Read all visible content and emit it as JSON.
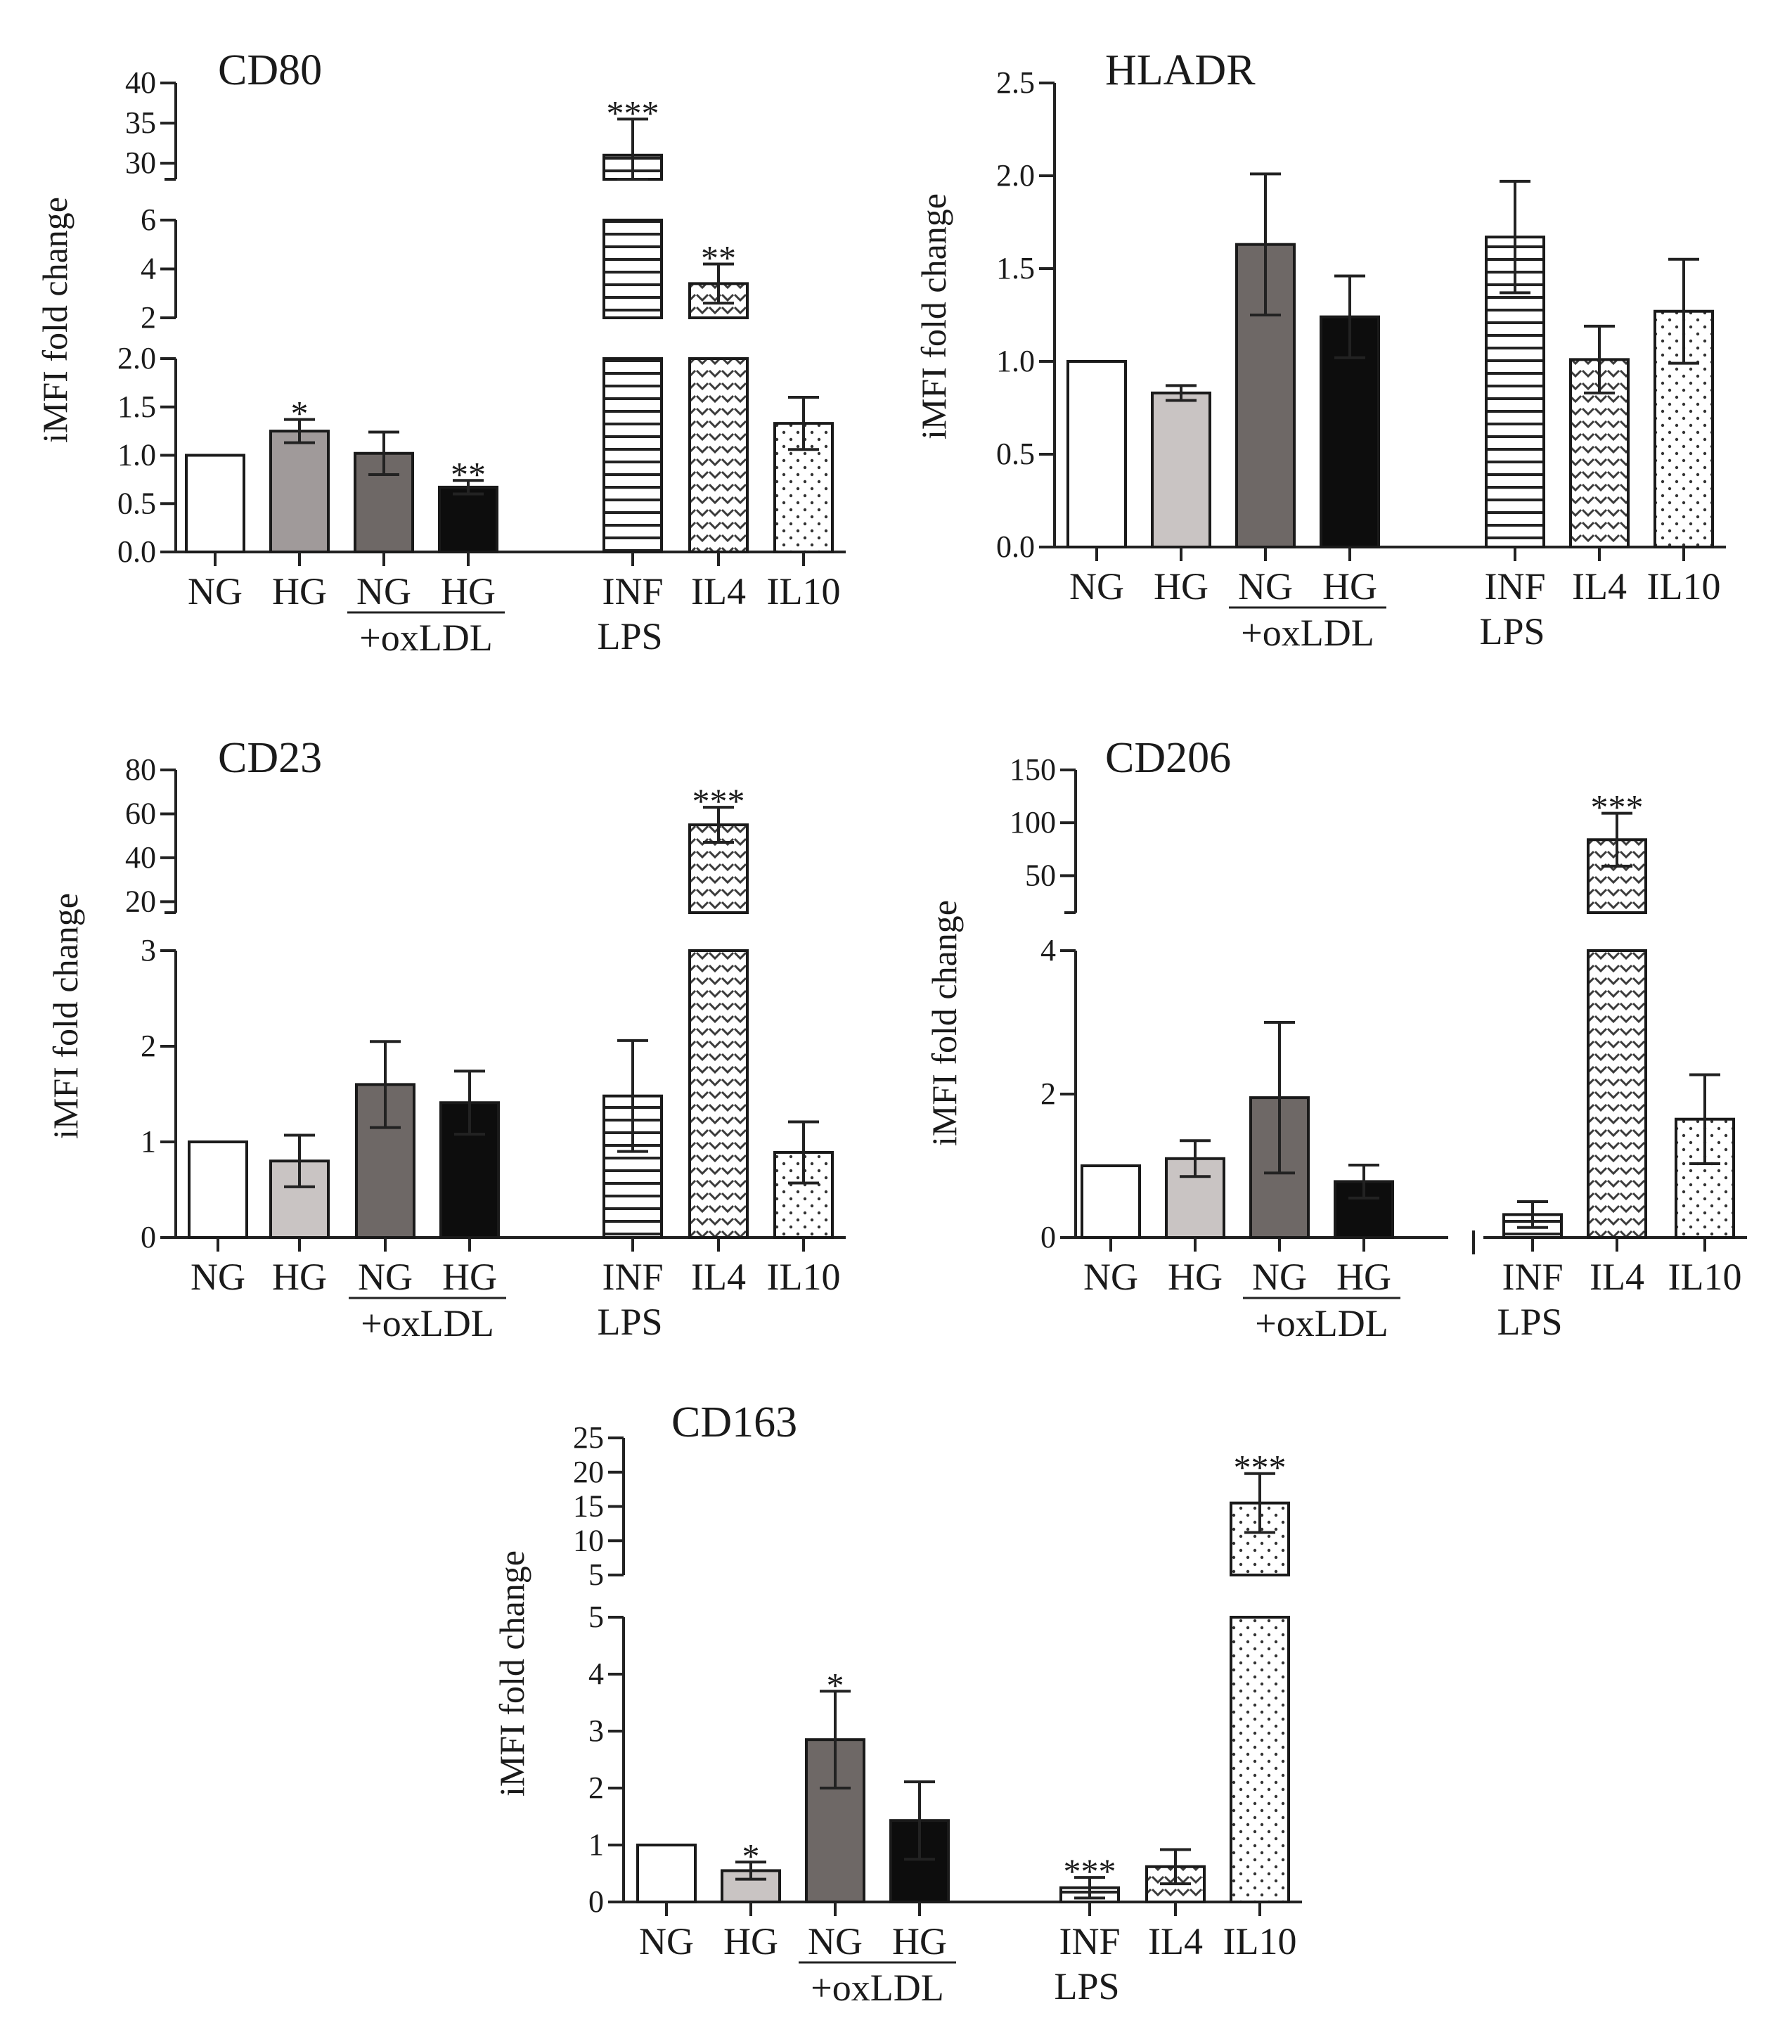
{
  "figure": {
    "panels": [
      "CD80",
      "HLADR",
      "CD23",
      "CD206",
      "CD163"
    ]
  },
  "patterns": {
    "NG": "white",
    "HG": "light-gray",
    "NG+oxLDL": "dark-gray",
    "HG+oxLDL": "black",
    "INF LPS": "horizontal-lines",
    "IL4": "chevron-pattern",
    "IL10": "dots"
  },
  "colors": {
    "light_gray": "#c9c4c3",
    "light_gray_cd80": "#a09a9a",
    "dark_gray": "#6e6866",
    "black": "#0d0d0d",
    "axis": "#222222"
  },
  "chart_data": [
    {
      "type": "bar",
      "title": "CD80",
      "ylabel": "iMFI fold change",
      "axis_break": true,
      "segments": [
        {
          "range": [
            0,
            2
          ],
          "ticks": [
            "0.0",
            "0.5",
            "1.0",
            "1.5",
            "2.0"
          ]
        },
        {
          "range": [
            2,
            6
          ],
          "ticks": [
            "2",
            "4",
            "6"
          ]
        },
        {
          "range": [
            28,
            40
          ],
          "ticks": [
            "30",
            "35",
            "40"
          ]
        }
      ],
      "categories": [
        "NG",
        "HG",
        "NG+oxLDL",
        "HG+oxLDL",
        "INF LPS",
        "IL4",
        "IL10"
      ],
      "values": [
        1.0,
        1.25,
        1.02,
        0.67,
        31.0,
        3.4,
        1.33
      ],
      "errors": [
        0,
        0.12,
        0.22,
        0.07,
        4.5,
        0.8,
        0.27
      ],
      "significance": [
        "",
        "*",
        "",
        "**",
        "***",
        "**",
        ""
      ],
      "xtick_labels": [
        "NG",
        "HG",
        "NG",
        "HG",
        "INF",
        "IL4",
        "IL10"
      ],
      "group_label": "+oxLDL",
      "sub_label": "LPS"
    },
    {
      "type": "bar",
      "title": "HLADR",
      "ylabel": "iMFI fold change",
      "axis_break": false,
      "segments": [
        {
          "range": [
            0,
            2.5
          ],
          "ticks": [
            "0.0",
            "0.5",
            "1.0",
            "1.5",
            "2.0",
            "2.5"
          ]
        }
      ],
      "categories": [
        "NG",
        "HG",
        "NG+oxLDL",
        "HG+oxLDL",
        "INF LPS",
        "IL4",
        "IL10"
      ],
      "values": [
        1.0,
        0.83,
        1.63,
        1.24,
        1.67,
        1.01,
        1.27
      ],
      "errors": [
        0,
        0.04,
        0.38,
        0.22,
        0.3,
        0.18,
        0.28
      ],
      "significance": [
        "",
        "",
        "",
        "",
        "",
        "",
        ""
      ],
      "xtick_labels": [
        "NG",
        "HG",
        "NG",
        "HG",
        "INF",
        "IL4",
        "IL10"
      ],
      "group_label": "+oxLDL",
      "sub_label": "LPS"
    },
    {
      "type": "bar",
      "title": "CD23",
      "ylabel": "iMFI fold change",
      "axis_break": true,
      "segments": [
        {
          "range": [
            0,
            3
          ],
          "ticks": [
            "0",
            "1",
            "2",
            "3"
          ]
        },
        {
          "range": [
            15,
            80
          ],
          "ticks": [
            "20",
            "40",
            "60",
            "80"
          ]
        }
      ],
      "categories": [
        "NG",
        "HG",
        "NG+oxLDL",
        "HG+oxLDL",
        "INF LPS",
        "IL4",
        "IL10"
      ],
      "values": [
        1.0,
        0.8,
        1.6,
        1.41,
        1.48,
        55.0,
        0.89
      ],
      "errors": [
        0,
        0.27,
        0.45,
        0.33,
        0.58,
        8.0,
        0.32
      ],
      "significance": [
        "",
        "",
        "",
        "",
        "",
        "***",
        ""
      ],
      "xtick_labels": [
        "NG",
        "HG",
        "NG",
        "HG",
        "INF",
        "IL4",
        "IL10"
      ],
      "group_label": "+oxLDL",
      "sub_label": "LPS"
    },
    {
      "type": "bar",
      "title": "CD206",
      "ylabel": "iMFI fold change",
      "axis_break": true,
      "segments": [
        {
          "range": [
            0,
            4
          ],
          "ticks": [
            "0",
            "2",
            "4"
          ]
        },
        {
          "range": [
            15,
            150
          ],
          "ticks": [
            "50",
            "100",
            "150"
          ]
        }
      ],
      "categories": [
        "NG",
        "HG",
        "NG+oxLDL",
        "HG+oxLDL",
        "INF LPS",
        "IL4",
        "IL10"
      ],
      "values": [
        1.0,
        1.1,
        1.95,
        0.78,
        0.32,
        84.0,
        1.65
      ],
      "errors": [
        0,
        0.25,
        1.05,
        0.23,
        0.18,
        25.0,
        0.62
      ],
      "significance": [
        "",
        "",
        "",
        "",
        "",
        "***",
        ""
      ],
      "xtick_labels": [
        "NG",
        "HG",
        "NG",
        "HG",
        "INF",
        "IL4",
        "IL10"
      ],
      "group_label": "+oxLDL",
      "sub_label": "LPS"
    },
    {
      "type": "bar",
      "title": "CD163",
      "ylabel": "iMFI fold change",
      "axis_break": true,
      "segments": [
        {
          "range": [
            0,
            5
          ],
          "ticks": [
            "0",
            "1",
            "2",
            "3",
            "4",
            "5"
          ]
        },
        {
          "range": [
            5,
            25
          ],
          "ticks": [
            "5",
            "10",
            "15",
            "20",
            "25"
          ]
        }
      ],
      "categories": [
        "NG",
        "HG",
        "NG+oxLDL",
        "HG+oxLDL",
        "INF LPS",
        "IL4",
        "IL10"
      ],
      "values": [
        1.0,
        0.55,
        2.85,
        1.43,
        0.25,
        0.62,
        15.5
      ],
      "errors": [
        0,
        0.15,
        0.85,
        0.68,
        0.18,
        0.3,
        4.3
      ],
      "significance": [
        "",
        "*",
        "*",
        "",
        "***",
        "",
        "***"
      ],
      "xtick_labels": [
        "NG",
        "HG",
        "NG",
        "HG",
        "INF",
        "IL4",
        "IL10"
      ],
      "group_label": "+oxLDL",
      "sub_label": "LPS"
    }
  ]
}
